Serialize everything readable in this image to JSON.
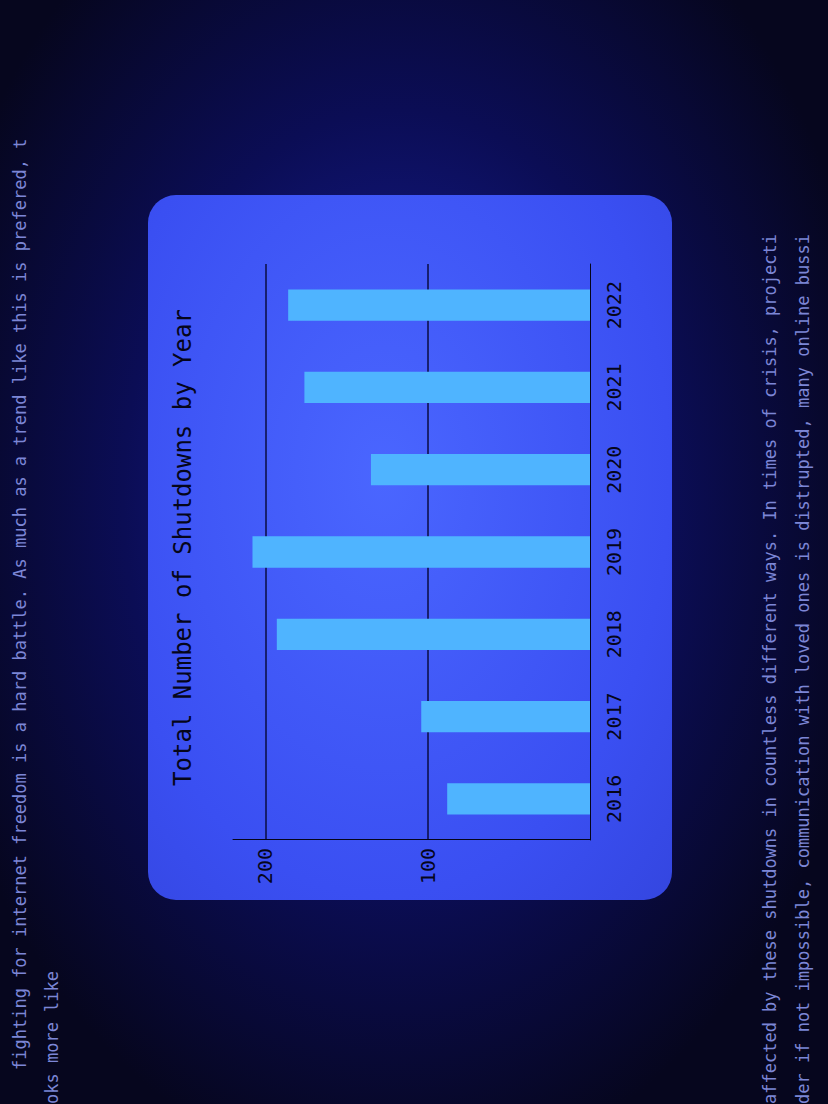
{
  "chart_data": {
    "type": "bar",
    "title": "Total Number of Shutdowns by Year",
    "categories": [
      "2016",
      "2017",
      "2018",
      "2019",
      "2020",
      "2021",
      "2022"
    ],
    "values": [
      88,
      104,
      193,
      208,
      135,
      176,
      186
    ],
    "color": "#4fb4ff",
    "ylim": [
      0,
      220
    ],
    "yticks": [
      100,
      200
    ],
    "grid": true,
    "annotations": [
      "fighting for internet freedom is a hard battle. As much as a trend like this is prefered, t",
      "oks more like",
      "affected by these shutdowns in countless different ways. In times of crisis, projecti",
      "der if not impossible, communication with loved ones is distrupted, many online bussi"
    ]
  }
}
